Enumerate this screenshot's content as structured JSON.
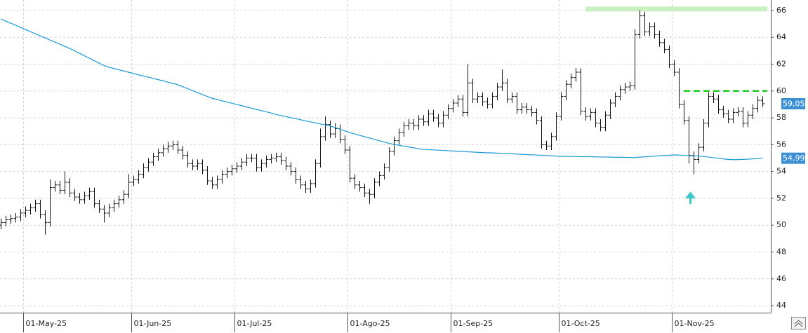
{
  "chart_data": {
    "type": "ohlc",
    "categories": [
      null,
      null,
      null,
      null,
      null,
      "01-May-25",
      null,
      null,
      null,
      null,
      null,
      null,
      null,
      null,
      null,
      null,
      null,
      null,
      null,
      null,
      null,
      null,
      null,
      null,
      null,
      null,
      null,
      "01-Jun-25",
      null,
      null,
      null,
      null,
      null,
      null,
      null,
      null,
      null,
      null,
      null,
      null,
      null,
      null,
      null,
      null,
      null,
      null,
      null,
      null,
      "01-Jul-25",
      null,
      null,
      null,
      null,
      null,
      null,
      null,
      null,
      null,
      null,
      null,
      null,
      null,
      null,
      null,
      null,
      null,
      null,
      null,
      null,
      null,
      null,
      "01-Ago-25",
      null,
      null,
      null,
      null,
      null,
      null,
      null,
      null,
      null,
      null,
      null,
      null,
      null,
      null,
      null,
      null,
      null,
      null,
      null,
      null,
      "01-Sep-25",
      null,
      null,
      null,
      null,
      null,
      null,
      null,
      null,
      null,
      null,
      null,
      null,
      null,
      null,
      null,
      null,
      null,
      null,
      null,
      null,
      null,
      "01-Oct-25",
      null,
      null,
      null,
      null,
      null,
      null,
      null,
      null,
      null,
      null,
      null,
      null,
      null,
      null,
      null,
      null,
      null,
      null,
      null,
      null,
      null,
      null,
      "01-Nov-25",
      null,
      null,
      null,
      null,
      null,
      null,
      null,
      null,
      null,
      null,
      null,
      null,
      null,
      null,
      null,
      null,
      null,
      null
    ],
    "ohlc": {
      "color": "#111111",
      "open": [
        50.0,
        50.2,
        50.4,
        50.5,
        50.6,
        50.9,
        51.1,
        51.3,
        51.6,
        50.8,
        50.2,
        52.8,
        53.0,
        52.6,
        53.2,
        52.4,
        52.1,
        51.9,
        52.2,
        52.5,
        51.6,
        51.2,
        50.9,
        51.3,
        51.6,
        51.9,
        52.3,
        53.2,
        53.4,
        53.8,
        54.3,
        54.7,
        55.1,
        55.4,
        55.7,
        55.9,
        56.0,
        55.6,
        55.2,
        54.6,
        54.4,
        54.6,
        54.1,
        53.3,
        53.0,
        53.4,
        53.8,
        54.0,
        54.2,
        54.4,
        54.7,
        55.0,
        55.0,
        54.3,
        54.6,
        54.9,
        55.0,
        55.1,
        54.8,
        54.4,
        54.0,
        53.4,
        53.0,
        52.7,
        53.1,
        54.6,
        56.6,
        57.5,
        56.8,
        57.2,
        56.4,
        55.6,
        53.5,
        53.0,
        52.8,
        52.4,
        52.3,
        53.2,
        53.7,
        54.3,
        55.5,
        56.3,
        56.9,
        57.4,
        57.6,
        57.4,
        57.9,
        57.7,
        58.3,
        58.0,
        57.6,
        58.2,
        58.7,
        59.1,
        59.4,
        58.4,
        60.6,
        59.4,
        59.6,
        59.2,
        59.0,
        59.6,
        60.3,
        60.6,
        59.4,
        59.6,
        58.6,
        58.8,
        58.6,
        58.4,
        57.8,
        56.0,
        55.9,
        56.6,
        58.1,
        59.6,
        60.5,
        61.0,
        61.4,
        58.5,
        58.1,
        58.4,
        57.6,
        57.3,
        58.2,
        59.1,
        59.6,
        60.1,
        60.3,
        60.4,
        64.2,
        65.6,
        64.4,
        64.8,
        64.2,
        63.6,
        63.1,
        62.0,
        61.4,
        59.0,
        57.8,
        55.2,
        54.9,
        55.8,
        57.6,
        59.6,
        59.4,
        58.6,
        58.3,
        57.9,
        58.4,
        58.5,
        57.6,
        58.2,
        58.7,
        59.3
      ],
      "high": [
        50.5,
        50.7,
        50.8,
        50.9,
        51.2,
        51.4,
        51.6,
        51.9,
        51.9,
        51.1,
        53.4,
        53.3,
        53.3,
        54.0,
        53.5,
        52.7,
        52.4,
        52.5,
        52.8,
        52.8,
        51.9,
        51.5,
        51.6,
        51.9,
        52.2,
        52.6,
        53.8,
        53.7,
        54.1,
        54.6,
        55.0,
        55.4,
        55.7,
        56.0,
        56.2,
        56.3,
        56.3,
        55.9,
        55.5,
        54.9,
        54.9,
        54.9,
        54.4,
        53.6,
        53.7,
        54.1,
        54.3,
        54.5,
        54.7,
        55.0,
        55.3,
        55.3,
        55.3,
        54.9,
        55.2,
        55.3,
        55.4,
        55.4,
        55.1,
        54.7,
        54.3,
        53.7,
        53.3,
        53.4,
        54.9,
        57.2,
        58.1,
        57.8,
        57.6,
        57.5,
        56.7,
        55.9,
        53.8,
        53.3,
        53.1,
        52.7,
        53.5,
        54.0,
        54.6,
        55.8,
        56.6,
        57.2,
        57.7,
        57.9,
        57.9,
        58.2,
        58.2,
        58.6,
        58.6,
        58.3,
        58.5,
        59.0,
        59.4,
        59.7,
        59.7,
        62.0,
        60.9,
        59.9,
        59.9,
        59.5,
        59.9,
        60.6,
        61.6,
        60.9,
        59.9,
        59.9,
        59.1,
        59.1,
        58.9,
        58.7,
        58.1,
        56.3,
        56.9,
        58.4,
        59.9,
        60.8,
        61.3,
        61.7,
        61.7,
        58.8,
        58.7,
        58.7,
        57.9,
        58.5,
        59.4,
        59.9,
        60.4,
        60.6,
        60.7,
        64.6,
        66.0,
        65.9,
        65.1,
        65.1,
        64.5,
        63.9,
        63.4,
        62.3,
        61.7,
        59.3,
        58.1,
        55.5,
        56.1,
        57.9,
        59.9,
        59.9,
        59.7,
        58.9,
        58.6,
        58.7,
        58.8,
        58.8,
        58.5,
        59.0,
        59.6,
        59.6
      ],
      "low": [
        49.7,
        49.9,
        50.1,
        50.2,
        50.3,
        50.6,
        50.8,
        51.0,
        50.5,
        49.3,
        49.9,
        52.5,
        52.3,
        52.3,
        52.1,
        51.8,
        51.6,
        51.6,
        51.9,
        51.3,
        50.9,
        50.2,
        50.6,
        51.0,
        51.3,
        51.6,
        52.0,
        52.9,
        53.1,
        53.5,
        54.0,
        54.4,
        54.8,
        55.1,
        55.4,
        55.6,
        55.3,
        54.9,
        54.3,
        54.1,
        54.1,
        53.8,
        53.0,
        52.7,
        52.7,
        53.1,
        53.5,
        53.7,
        53.9,
        54.1,
        54.4,
        54.7,
        54.0,
        54.0,
        54.3,
        54.6,
        54.7,
        54.5,
        54.1,
        53.7,
        53.1,
        52.7,
        52.4,
        52.4,
        52.8,
        54.3,
        56.3,
        56.5,
        56.5,
        56.1,
        55.3,
        53.2,
        52.7,
        52.5,
        52.1,
        51.6,
        52.0,
        52.9,
        53.4,
        54.0,
        55.2,
        56.0,
        56.6,
        57.1,
        57.1,
        57.1,
        57.4,
        57.4,
        57.7,
        57.3,
        57.3,
        57.9,
        58.4,
        58.8,
        58.1,
        58.1,
        59.1,
        59.1,
        58.9,
        58.7,
        58.7,
        59.3,
        60.0,
        59.1,
        59.1,
        58.3,
        58.3,
        58.3,
        58.1,
        57.5,
        55.7,
        55.6,
        55.6,
        56.3,
        57.8,
        59.3,
        60.2,
        60.7,
        58.2,
        57.8,
        57.8,
        57.3,
        57.0,
        57.0,
        57.9,
        58.8,
        59.3,
        59.8,
        60.0,
        60.1,
        63.9,
        64.1,
        64.1,
        63.9,
        63.3,
        62.8,
        61.7,
        61.1,
        58.7,
        57.5,
        54.6,
        53.8,
        54.6,
        55.5,
        57.3,
        59.1,
        58.3,
        58.0,
        57.6,
        57.6,
        58.1,
        57.3,
        57.3,
        57.9,
        58.4,
        58.8
      ],
      "close": [
        50.2,
        50.4,
        50.5,
        50.6,
        50.9,
        51.1,
        51.3,
        51.6,
        50.8,
        50.2,
        52.8,
        53.0,
        52.6,
        53.2,
        52.4,
        52.1,
        51.9,
        52.2,
        52.5,
        51.6,
        51.2,
        50.9,
        51.3,
        51.6,
        51.9,
        52.3,
        53.2,
        53.4,
        53.8,
        54.3,
        54.7,
        55.1,
        55.4,
        55.7,
        55.9,
        56.0,
        55.6,
        55.2,
        54.6,
        54.4,
        54.6,
        54.1,
        53.3,
        53.0,
        53.4,
        53.8,
        54.0,
        54.2,
        54.4,
        54.7,
        55.0,
        55.0,
        54.3,
        54.6,
        54.9,
        55.0,
        55.1,
        54.8,
        54.4,
        54.0,
        53.4,
        53.0,
        52.7,
        53.1,
        54.6,
        56.6,
        57.5,
        56.8,
        57.2,
        56.4,
        55.6,
        53.5,
        53.0,
        52.8,
        52.4,
        52.3,
        53.2,
        53.7,
        54.3,
        55.5,
        56.3,
        56.9,
        57.4,
        57.6,
        57.4,
        57.9,
        57.7,
        58.3,
        58.0,
        57.6,
        58.2,
        58.7,
        59.1,
        59.4,
        58.4,
        60.6,
        59.4,
        59.6,
        59.2,
        59.0,
        59.6,
        60.3,
        60.6,
        59.4,
        59.6,
        58.6,
        58.8,
        58.6,
        58.4,
        57.8,
        56.0,
        55.9,
        56.6,
        58.1,
        59.6,
        60.5,
        61.0,
        61.4,
        58.5,
        58.1,
        58.4,
        57.6,
        57.3,
        58.2,
        59.1,
        59.6,
        60.1,
        60.3,
        60.4,
        64.2,
        65.6,
        64.4,
        64.8,
        64.2,
        63.6,
        63.1,
        62.0,
        61.4,
        59.0,
        57.8,
        55.2,
        54.9,
        55.8,
        57.6,
        59.6,
        59.4,
        58.6,
        58.3,
        57.9,
        58.4,
        58.5,
        57.6,
        58.2,
        58.7,
        59.3,
        59.05
      ]
    },
    "lines": [
      {
        "color": "#1a9ad6",
        "values": [
          65.37,
          65.21,
          65.06,
          64.9,
          64.74,
          64.59,
          64.43,
          64.27,
          64.12,
          63.96,
          63.8,
          63.65,
          63.49,
          63.33,
          63.18,
          63.0,
          62.82,
          62.63,
          62.45,
          62.27,
          62.08,
          61.9,
          61.77,
          61.68,
          61.58,
          61.49,
          61.4,
          61.31,
          61.21,
          61.12,
          61.03,
          60.94,
          60.85,
          60.76,
          60.66,
          60.57,
          60.47,
          60.32,
          60.18,
          60.03,
          59.89,
          59.74,
          59.6,
          59.46,
          59.37,
          59.27,
          59.18,
          59.09,
          59.0,
          58.91,
          58.82,
          58.72,
          58.63,
          58.54,
          58.45,
          58.36,
          58.26,
          58.17,
          58.09,
          58.01,
          57.94,
          57.86,
          57.78,
          57.7,
          57.62,
          57.55,
          57.47,
          57.39,
          57.28,
          57.16,
          57.03,
          56.91,
          56.8,
          56.7,
          56.6,
          56.5,
          56.4,
          56.3,
          56.2,
          56.1,
          56.02,
          55.96,
          55.89,
          55.83,
          55.77,
          55.7,
          55.65,
          55.63,
          55.61,
          55.59,
          55.57,
          55.55,
          55.53,
          55.51,
          55.49,
          55.47,
          55.45,
          55.43,
          55.41,
          55.39,
          55.39,
          55.37,
          55.35,
          55.34,
          55.32,
          55.3,
          55.28,
          55.26,
          55.24,
          55.23,
          55.21,
          55.19,
          55.17,
          55.15,
          55.13,
          55.13,
          55.12,
          55.12,
          55.11,
          55.1,
          55.1,
          55.09,
          55.08,
          55.08,
          55.07,
          55.06,
          55.06,
          55.05,
          55.04,
          55.04,
          55.07,
          55.09,
          55.12,
          55.14,
          55.17,
          55.19,
          55.21,
          55.24,
          55.22,
          55.2,
          55.18,
          55.17,
          55.15,
          55.12,
          55.08,
          55.03,
          54.99,
          54.94,
          54.9,
          54.88,
          54.89,
          54.9,
          54.92,
          54.94,
          54.96,
          54.99
        ]
      }
    ],
    "hlines": [
      {
        "value": 66,
        "color": "#c8f0c0",
        "style": "band"
      },
      {
        "value": 60,
        "color": "#22cc22",
        "style": "dashed"
      }
    ],
    "price_label": {
      "value": 59.05,
      "label": "59,05",
      "color": "#3d8fd6"
    },
    "ma_label": {
      "value": 54.99,
      "label": "54,99",
      "color": "#3d8fd6"
    },
    "ylim": [
      43.48,
      66.78
    ],
    "yticks": [
      44,
      46,
      48,
      50,
      52,
      54,
      56,
      58,
      60,
      62,
      64,
      66
    ],
    "grid": true
  }
}
